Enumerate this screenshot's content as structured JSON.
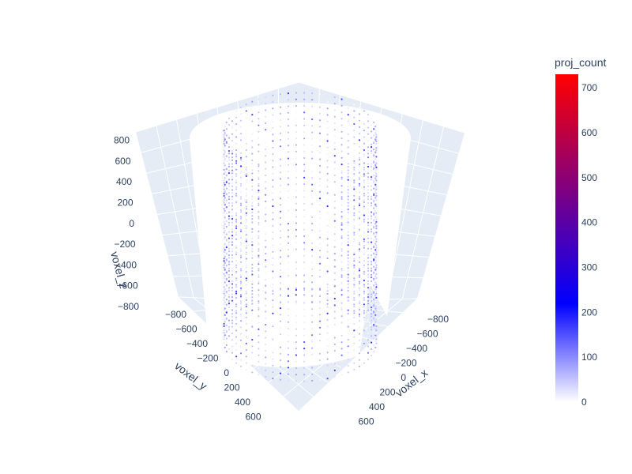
{
  "chart_data": {
    "type": "scatter3d",
    "title": "",
    "axes": {
      "x": {
        "label": "voxel_x",
        "ticks": [
          "−800",
          "−600",
          "−400",
          "−200",
          "0",
          "200",
          "400",
          "600"
        ],
        "range": [
          -800,
          700
        ]
      },
      "y": {
        "label": "voxel_y",
        "ticks": [
          "−800",
          "−600",
          "−400",
          "−200",
          "0",
          "200",
          "400",
          "600"
        ],
        "range": [
          -800,
          700
        ]
      },
      "z": {
        "label": "voxel_z",
        "ticks": [
          "−800",
          "−600",
          "−400",
          "−200",
          "0",
          "200",
          "400",
          "600",
          "800"
        ],
        "range": [
          -800,
          800
        ]
      }
    },
    "cylinder": {
      "radius": 650,
      "z_range": [
        -800,
        800
      ],
      "missing_wedge": "corner nearest viewer, upper portion"
    },
    "colorbar": {
      "title": "proj_count",
      "ticks": [
        "0",
        "100",
        "200",
        "300",
        "400",
        "500",
        "600",
        "700"
      ],
      "range": [
        0,
        730
      ],
      "colorscale": [
        "#ffffff",
        "#0000ff",
        "#ff0000"
      ]
    },
    "grid": true,
    "background": "#e5ecf6"
  }
}
